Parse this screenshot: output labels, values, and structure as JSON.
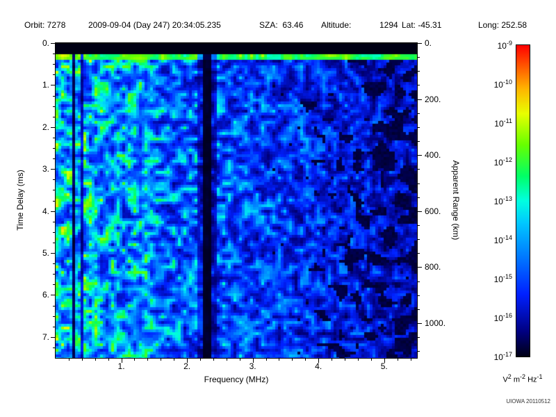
{
  "header": {
    "items": [
      {
        "text": "Orbit: 7278"
      },
      {
        "text": "2009-09-04 (Day 247) 20:34:05.235"
      },
      {
        "text": "SZA:  63.46"
      },
      {
        "text": "Altitude:"
      },
      {
        "text": "1294"
      },
      {
        "text": "Lat: -45.31"
      },
      {
        "text": "Long: 252.58"
      }
    ]
  },
  "chart_data": {
    "type": "heatmap",
    "title": "",
    "xlabel": "Frequency (MHz)",
    "ylabel": "Time Delay (ms)",
    "y2label": "Apparent Range (km)",
    "xlim": [
      0,
      5.5
    ],
    "ylim": [
      0,
      7.5
    ],
    "y2lim": [
      0,
      1124
    ],
    "xticks": [
      1,
      2,
      3,
      4,
      5
    ],
    "xtick_labels": [
      "1.",
      "2.",
      "3.",
      "4.",
      "5."
    ],
    "yticks": [
      0,
      1,
      2,
      3,
      4,
      5,
      6,
      7
    ],
    "ytick_labels": [
      "0.",
      "1.",
      "2.",
      "3.",
      "4.",
      "5.",
      "6.",
      "7."
    ],
    "y2ticks": [
      0,
      200,
      400,
      600,
      800,
      1000
    ],
    "y2tick_labels": [
      "0.",
      "200.",
      "400.",
      "600.",
      "800.",
      "1000."
    ],
    "grid": false,
    "colorbar": {
      "scale": "log",
      "range_top": "1e-9",
      "range_bottom": "1e-17",
      "tick_exponents": [
        -9,
        -10,
        -11,
        -12,
        -13,
        -14,
        -15,
        -16,
        -17
      ],
      "unit_parts": [
        {
          "t": "V"
        },
        {
          "s": "2"
        },
        {
          "t": " m"
        },
        {
          "s": "-2"
        },
        {
          "t": " Hz"
        },
        {
          "s": "-1"
        }
      ],
      "stops": [
        {
          "pos": 0.0,
          "color": "#000014"
        },
        {
          "pos": 0.08,
          "color": "#000080"
        },
        {
          "pos": 0.2,
          "color": "#0020ff"
        },
        {
          "pos": 0.33,
          "color": "#0080ff"
        },
        {
          "pos": 0.43,
          "color": "#00c8ff"
        },
        {
          "pos": 0.5,
          "color": "#00ffe0"
        },
        {
          "pos": 0.58,
          "color": "#00ff66"
        },
        {
          "pos": 0.68,
          "color": "#66ff00"
        },
        {
          "pos": 0.78,
          "color": "#e8ff00"
        },
        {
          "pos": 0.86,
          "color": "#ffb400"
        },
        {
          "pos": 0.93,
          "color": "#ff5a00"
        },
        {
          "pos": 1.0,
          "color": "#ff0000"
        }
      ]
    },
    "description": "Radar sounder ionogram spectrogram: diffuse blue-cyan speckle noise, brightest (cyan-green, ~1e-14) at low frequencies below ~1.5 MHz, fading to dark blue (~1e-16) at high frequency; solid black band above the first return; bright green surface-echo line near 0.3 ms delay across all frequencies; narrow black absorption lines near 0.3 MHz and 2.3 MHz; clumpy black dropout patches increasing above ~3.5 MHz.",
    "features": {
      "seed": 7278,
      "top_blackout_ms": 0.24,
      "surface_echo_band_ms": [
        0.24,
        0.42
      ],
      "dark_vertical_lines": [
        {
          "mhz": 0.27,
          "w": 0.03,
          "k": 0.12
        },
        {
          "mhz": 0.4,
          "w": 0.02,
          "k": 0.35
        },
        {
          "mhz": 2.3,
          "w": 0.05,
          "k": 0.06,
          "halo": 0.14,
          "halo_k": 0.55
        }
      ],
      "bright_column_mhz": 1.35,
      "blackout_patches_above_mhz": 3.2,
      "base_intensity_top": 0.46,
      "base_slope_per_mhz": 0.052
    }
  },
  "footer": {
    "credit": "UIOWA 20110512"
  }
}
